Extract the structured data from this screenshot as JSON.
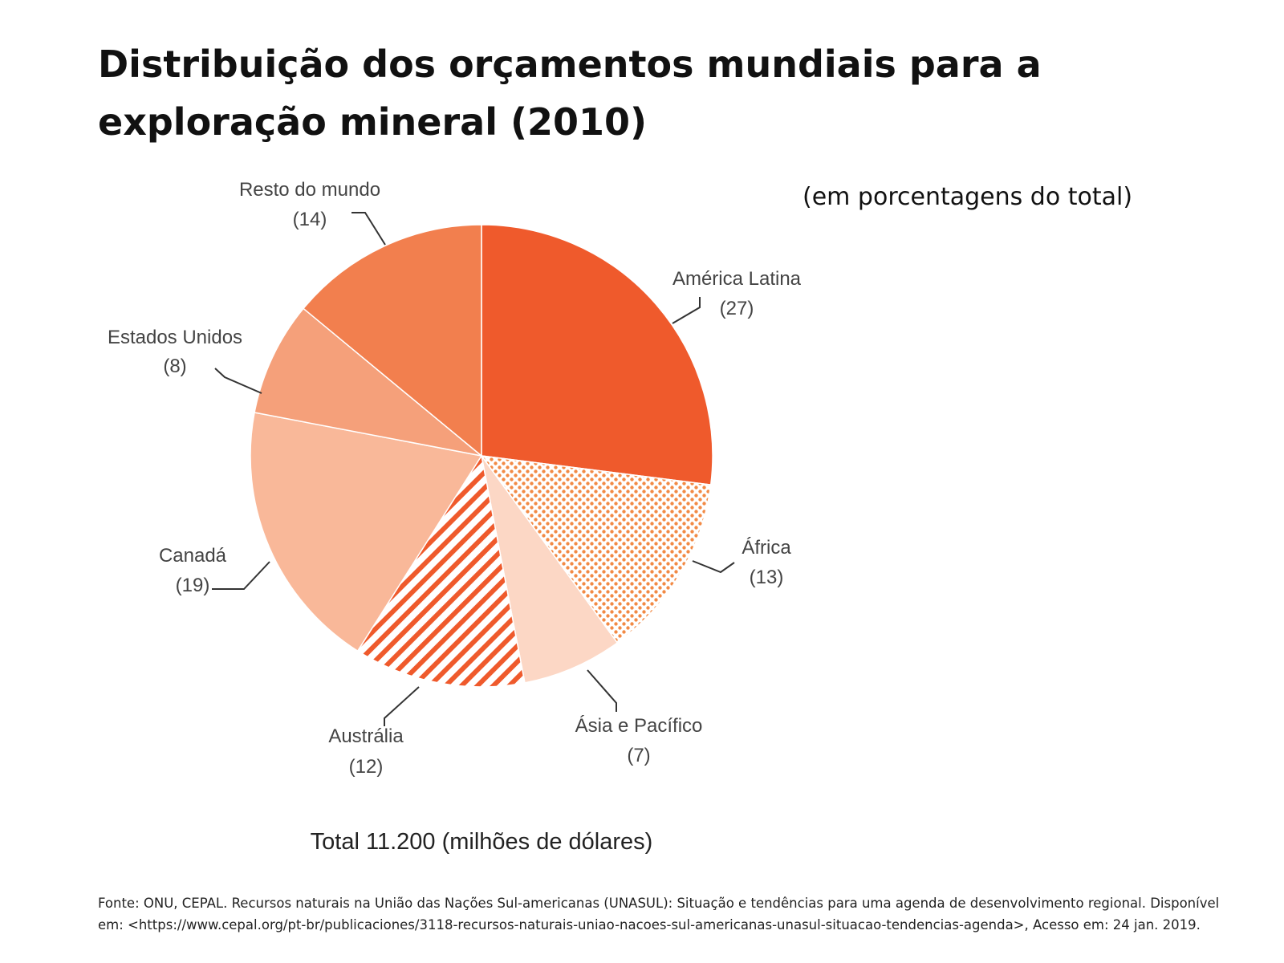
{
  "title": "Distribuição dos orçamentos mundiais para a exploração mineral (2010)",
  "unit_note": "(em porcentagens do total)",
  "total_label": "Total 11.200 (milhões de dólares)",
  "source": "Fonte: ONU, CEPAL. Recursos naturais na União das Nações Sul-americanas (UNASUL): Situação e tendências para uma agenda de desenvolvimento regional. Disponível em: <https://www.cepal.org/pt-br/publicaciones/3118-recursos-naturais-uniao-nacoes-sul-americanas-unasul-situacao-tendencias-agenda>, Acesso em: 24 jan. 2019.",
  "chart_data": {
    "type": "pie",
    "title": "Distribuição dos orçamentos mundiais para a exploração mineral (2010)",
    "unit": "(em porcentagens do total)",
    "total": "Total 11.200 (milhões de dólares)",
    "slices": [
      {
        "label": "América Latina",
        "value_label": "(27)",
        "value": 27,
        "color": "#EF5A2C",
        "pattern": "solid"
      },
      {
        "label": "África",
        "value_label": "(13)",
        "value": 13,
        "color": "#F28A45",
        "pattern": "dots"
      },
      {
        "label": "Ásia e Pacífico",
        "value_label": "(7)",
        "value": 7,
        "color": "#FCD7C5",
        "pattern": "solid"
      },
      {
        "label": "Austrália",
        "value_label": "(12)",
        "value": 12,
        "color": "#EF5A2C",
        "pattern": "stripes"
      },
      {
        "label": "Canadá",
        "value_label": "(19)",
        "value": 19,
        "color": "#F9B899",
        "pattern": "solid"
      },
      {
        "label": "Estados Unidos",
        "value_label": "(8)",
        "value": 8,
        "color": "#F5A07A",
        "pattern": "solid"
      },
      {
        "label": "Resto do mundo",
        "value_label": "(14)",
        "value": 14,
        "color": "#F27F4E",
        "pattern": "solid"
      }
    ]
  }
}
